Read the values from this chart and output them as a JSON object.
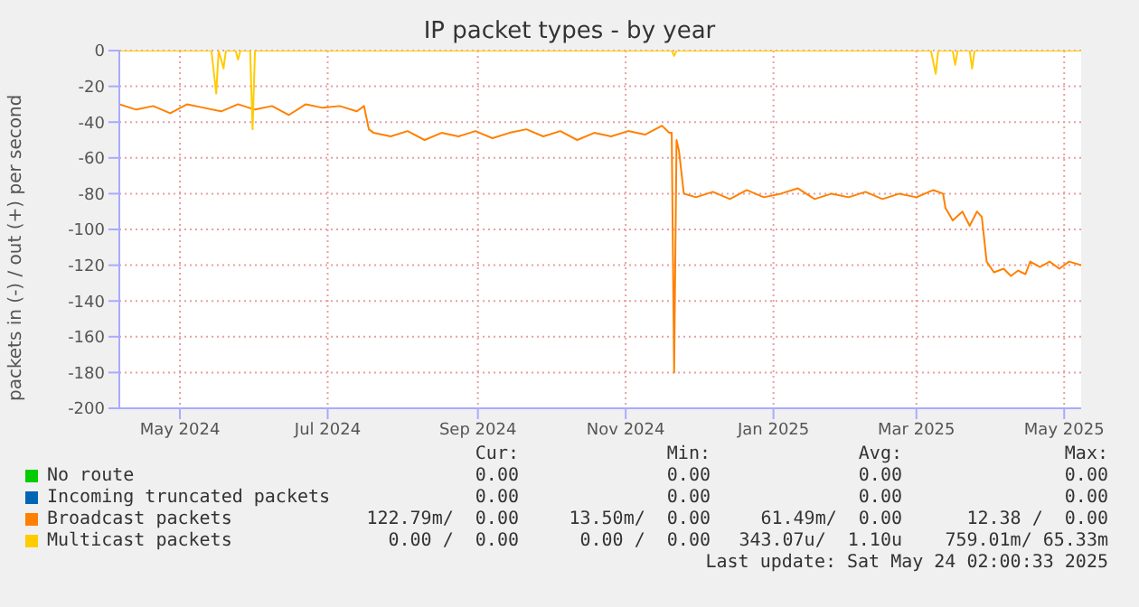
{
  "chart_data": {
    "type": "line",
    "title": "IP packet types - by year",
    "ylabel": "packets in (-) / out (+) per second",
    "xlim": [
      "2024-04-06",
      "2025-05-08"
    ],
    "xticks": [
      {
        "value": "2024-05-01",
        "label": "May 2024"
      },
      {
        "value": "2024-07-01",
        "label": "Jul 2024"
      },
      {
        "value": "2024-09-01",
        "label": "Sep 2024"
      },
      {
        "value": "2024-11-01",
        "label": "Nov 2024"
      },
      {
        "value": "2025-01-01",
        "label": "Jan 2025"
      },
      {
        "value": "2025-03-01",
        "label": "Mar 2025"
      },
      {
        "value": "2025-05-01",
        "label": "May 2025"
      }
    ],
    "ylim": [
      -200,
      0
    ],
    "yticks": [
      0,
      -20,
      -40,
      -60,
      -80,
      -100,
      -120,
      -140,
      -160,
      -180,
      -200
    ],
    "grid": true,
    "legend": "bottom",
    "marker": "none",
    "line_style": "solid",
    "series": [
      {
        "name": "No route",
        "color": "#00cc00"
      },
      {
        "name": "Incoming truncated packets",
        "color": "#0066b3"
      },
      {
        "name": "Broadcast packets",
        "color": "#ff8000",
        "x": [
          "2024-04-06",
          "2024-04-13",
          "2024-04-20",
          "2024-04-27",
          "2024-05-04",
          "2024-05-11",
          "2024-05-18",
          "2024-05-25",
          "2024-06-01",
          "2024-06-08",
          "2024-06-15",
          "2024-06-22",
          "2024-06-29",
          "2024-07-06",
          "2024-07-13",
          "2024-07-16",
          "2024-07-18",
          "2024-07-20",
          "2024-07-27",
          "2024-08-03",
          "2024-08-10",
          "2024-08-17",
          "2024-08-24",
          "2024-08-31",
          "2024-09-07",
          "2024-09-14",
          "2024-09-21",
          "2024-09-28",
          "2024-10-05",
          "2024-10-12",
          "2024-10-19",
          "2024-10-26",
          "2024-11-02",
          "2024-11-09",
          "2024-11-16",
          "2024-11-19",
          "2024-11-20",
          "2024-11-21",
          "2024-11-22",
          "2024-11-23",
          "2024-11-25",
          "2024-11-30",
          "2024-12-07",
          "2024-12-14",
          "2024-12-21",
          "2024-12-28",
          "2025-01-04",
          "2025-01-11",
          "2025-01-18",
          "2025-01-25",
          "2025-02-01",
          "2025-02-08",
          "2025-02-15",
          "2025-02-22",
          "2025-03-01",
          "2025-03-08",
          "2025-03-12",
          "2025-03-13",
          "2025-03-16",
          "2025-03-20",
          "2025-03-23",
          "2025-03-26",
          "2025-03-28",
          "2025-03-30",
          "2025-04-02",
          "2025-04-06",
          "2025-04-09",
          "2025-04-12",
          "2025-04-15",
          "2025-04-17",
          "2025-04-21",
          "2025-04-25",
          "2025-04-29",
          "2025-05-03",
          "2025-05-08"
        ],
        "values": [
          -30,
          -33,
          -31,
          -35,
          -30,
          -32,
          -34,
          -30,
          -33,
          -31,
          -36,
          -30,
          -32,
          -31,
          -34,
          -31,
          -44,
          -46,
          -48,
          -45,
          -50,
          -46,
          -48,
          -45,
          -49,
          -46,
          -44,
          -48,
          -45,
          -50,
          -46,
          -48,
          -45,
          -47,
          -42,
          -46,
          -46,
          -180,
          -50,
          -56,
          -80,
          -82,
          -79,
          -83,
          -78,
          -82,
          -80,
          -77,
          -83,
          -80,
          -82,
          -79,
          -83,
          -80,
          -82,
          -78,
          -80,
          -88,
          -95,
          -90,
          -98,
          -90,
          -93,
          -118,
          -124,
          -122,
          -126,
          -123,
          -125,
          -118,
          -121,
          -118,
          -122,
          -118,
          -120
        ]
      },
      {
        "name": "Multicast packets",
        "color": "#ffcc00",
        "x": [
          "2024-04-06",
          "2024-05-14",
          "2024-05-16",
          "2024-05-17",
          "2024-05-19",
          "2024-05-20",
          "2024-05-24",
          "2024-05-25",
          "2024-05-26",
          "2024-05-30",
          "2024-05-31",
          "2024-06-01",
          "2024-11-20",
          "2024-11-21",
          "2024-11-22",
          "2025-03-07",
          "2025-03-09",
          "2025-03-10",
          "2025-03-16",
          "2025-03-17",
          "2025-03-18",
          "2025-03-23",
          "2025-03-24",
          "2025-03-25",
          "2025-05-08"
        ],
        "values": [
          0,
          0,
          -24,
          0,
          -10,
          0,
          0,
          -5,
          0,
          0,
          -44,
          0,
          0,
          -3,
          0,
          0,
          -13,
          0,
          0,
          -8,
          0,
          0,
          -10,
          0,
          0
        ]
      }
    ],
    "annotations": [
      "Cur:",
      "Min:",
      "Avg:",
      "Max:",
      "0.00",
      "0.00",
      "0.00",
      "0.00",
      "0.00",
      "0.00",
      "0.00",
      "0.00",
      "122.79m/  0.00",
      "13.50m/  0.00",
      "61.49m/  0.00",
      "12.38 /  0.00",
      "0.00 /  0.00",
      "0.00 /  0.00",
      "343.07u/  1.10u",
      "759.01m/ 65.33m",
      "Last update: Sat May 24 02:00:33 2025"
    ]
  }
}
